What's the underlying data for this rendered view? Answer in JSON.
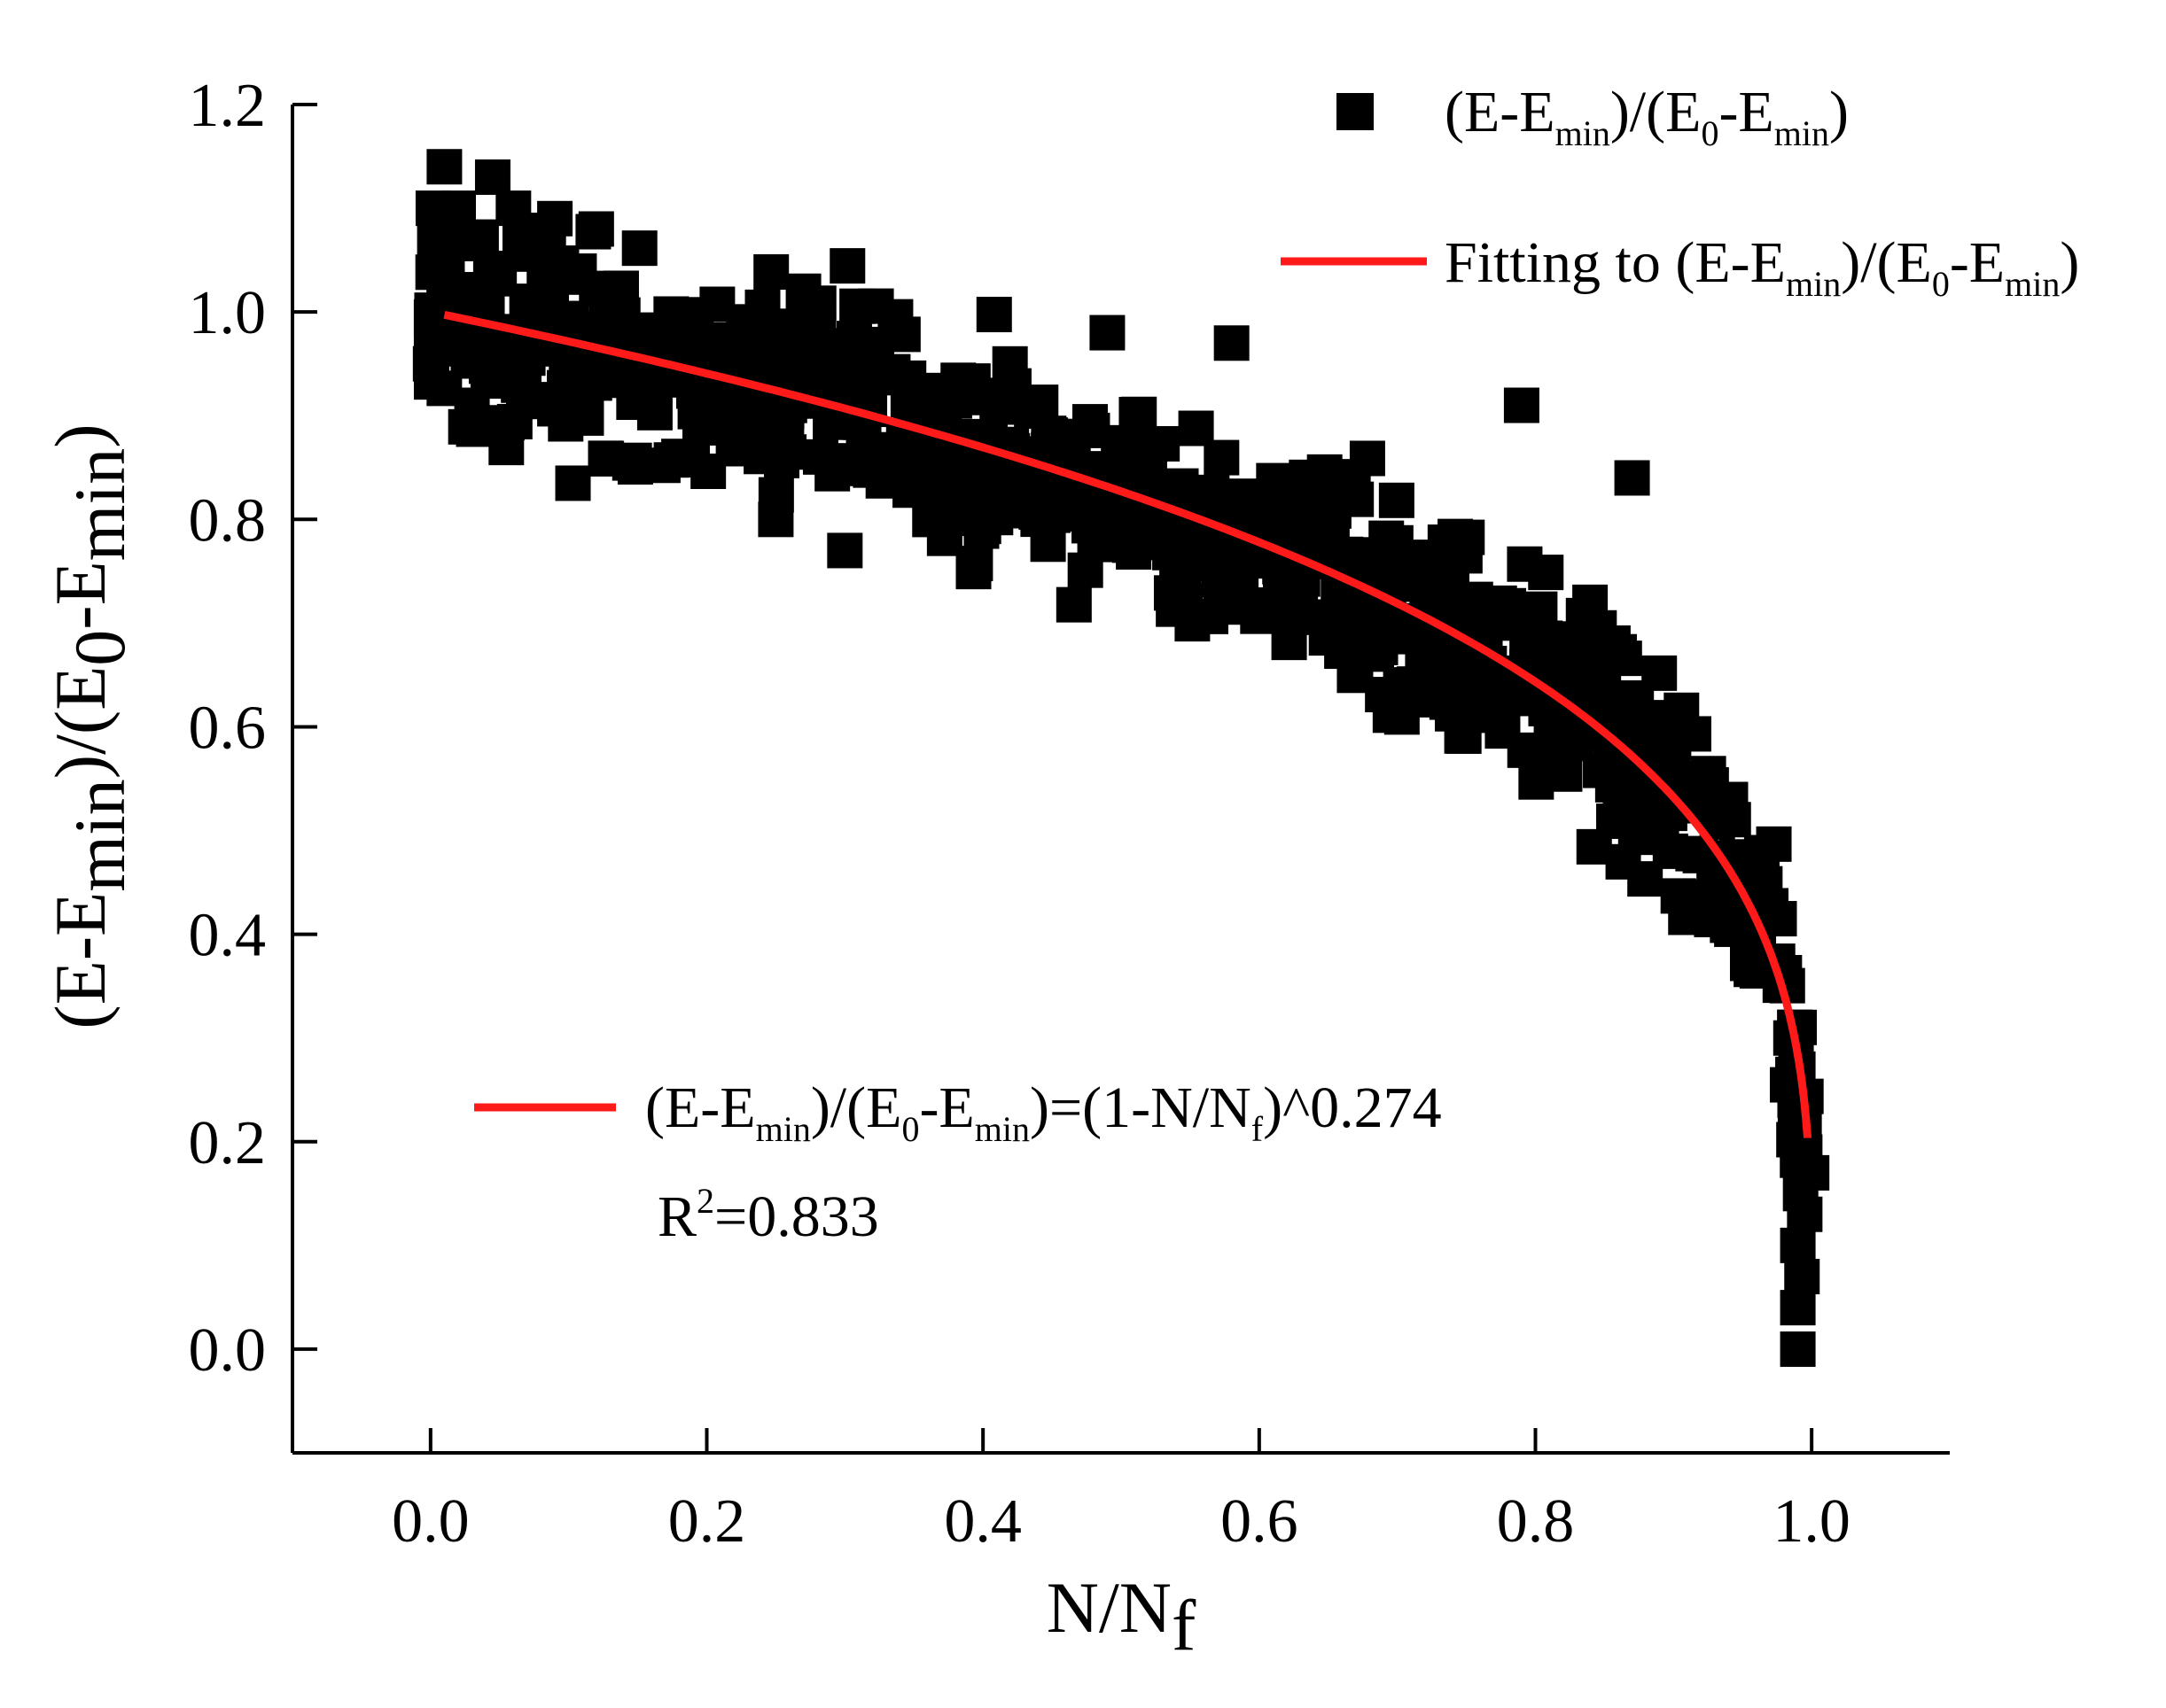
{
  "chart_data": {
    "type": "scatter",
    "title": "",
    "xlabel": {
      "main": "N/N",
      "sub": "f"
    },
    "ylabel": {
      "p1": "(E-E",
      "s1": "min",
      "p2": ")/(E",
      "s2": "0",
      "p3": "-E",
      "s3": "min",
      "p4": ")"
    },
    "xlim": [
      -0.1,
      1.1
    ],
    "ylim": [
      -0.1,
      1.2
    ],
    "xticks": [
      {
        "value": 0.0,
        "label": "0.0"
      },
      {
        "value": 0.2,
        "label": "0.2"
      },
      {
        "value": 0.4,
        "label": "0.4"
      },
      {
        "value": 0.6,
        "label": "0.6"
      },
      {
        "value": 0.8,
        "label": "0.8"
      },
      {
        "value": 1.0,
        "label": "1.0"
      }
    ],
    "yticks": [
      {
        "value": 0.0,
        "label": "0.0"
      },
      {
        "value": 0.2,
        "label": "0.2"
      },
      {
        "value": 0.4,
        "label": "0.4"
      },
      {
        "value": 0.6,
        "label": "0.6"
      },
      {
        "value": 0.8,
        "label": "0.8"
      },
      {
        "value": 1.0,
        "label": "1.0"
      },
      {
        "value": 1.2,
        "label": "1.2"
      }
    ],
    "series": [
      {
        "name": "(E-Emin)/(E0-Emin)",
        "kind": "scatter",
        "marker": "square",
        "color": "#000000",
        "legend": {
          "p1": "(E-E",
          "s1": "min",
          "p2": ")/(E",
          "s2": "0",
          "p3": "-E",
          "s3": "min",
          "p4": ")"
        },
        "generator": {
          "model": "(1-x)^0.274",
          "x_range": [
            0.0,
            0.997
          ],
          "n_points": 720,
          "noise": 0.1,
          "seed": 7
        },
        "extra_points": [
          {
            "x": 0.002,
            "y": 1.1
          },
          {
            "x": 0.01,
            "y": 1.14
          },
          {
            "x": 0.02,
            "y": 1.1
          },
          {
            "x": 0.045,
            "y": 1.13
          },
          {
            "x": 0.06,
            "y": 1.1
          },
          {
            "x": 0.09,
            "y": 1.09
          },
          {
            "x": 0.12,
            "y": 1.08
          },
          {
            "x": 0.27,
            "y": 1.02
          },
          {
            "x": 0.3,
            "y": 0.77
          },
          {
            "x": 0.0,
            "y": 0.95
          },
          {
            "x": 0.03,
            "y": 0.91
          },
          {
            "x": 0.25,
            "y": 0.8
          },
          {
            "x": 0.49,
            "y": 0.98
          },
          {
            "x": 0.58,
            "y": 0.97
          },
          {
            "x": 0.6,
            "y": 0.76
          },
          {
            "x": 0.79,
            "y": 0.91
          },
          {
            "x": 0.87,
            "y": 0.84
          },
          {
            "x": 0.91,
            "y": 0.55
          },
          {
            "x": 0.985,
            "y": 0.3
          },
          {
            "x": 0.99,
            "y": 0.27
          },
          {
            "x": 0.988,
            "y": 0.24
          },
          {
            "x": 0.992,
            "y": 0.21
          },
          {
            "x": 0.995,
            "y": 0.19
          },
          {
            "x": 1.0,
            "y": 0.17
          },
          {
            "x": 0.992,
            "y": 0.15
          },
          {
            "x": 0.995,
            "y": 0.13
          },
          {
            "x": 0.99,
            "y": 0.1
          },
          {
            "x": 0.993,
            "y": 0.07
          },
          {
            "x": 0.99,
            "y": 0.04
          },
          {
            "x": 0.99,
            "y": 0.0
          }
        ]
      },
      {
        "name": "Fitting to (E-Emin)/(E0-Emin)",
        "kind": "line",
        "color": "#ff1a1a",
        "legend": {
          "p1": "Fitting to (E-E",
          "s1": "min",
          "p2": ")/(E",
          "s2": "0",
          "p3": "-E",
          "s3": "min",
          "p4": ")"
        },
        "equation": "(1-x)^0.274",
        "x_range": [
          0.01,
          0.997
        ]
      }
    ],
    "annotation": {
      "p1": "(E-E",
      "s1": "min",
      "p2": ")/(E",
      "s2": "0",
      "p3": "-E",
      "s3": "min",
      "p4": ")=(1-N/N",
      "s4": "f",
      "p5": ")^0.274",
      "r2_prefix": "R",
      "r2_sup": "2",
      "r2_rest": "=0.833"
    },
    "legend_position": "top-right"
  }
}
